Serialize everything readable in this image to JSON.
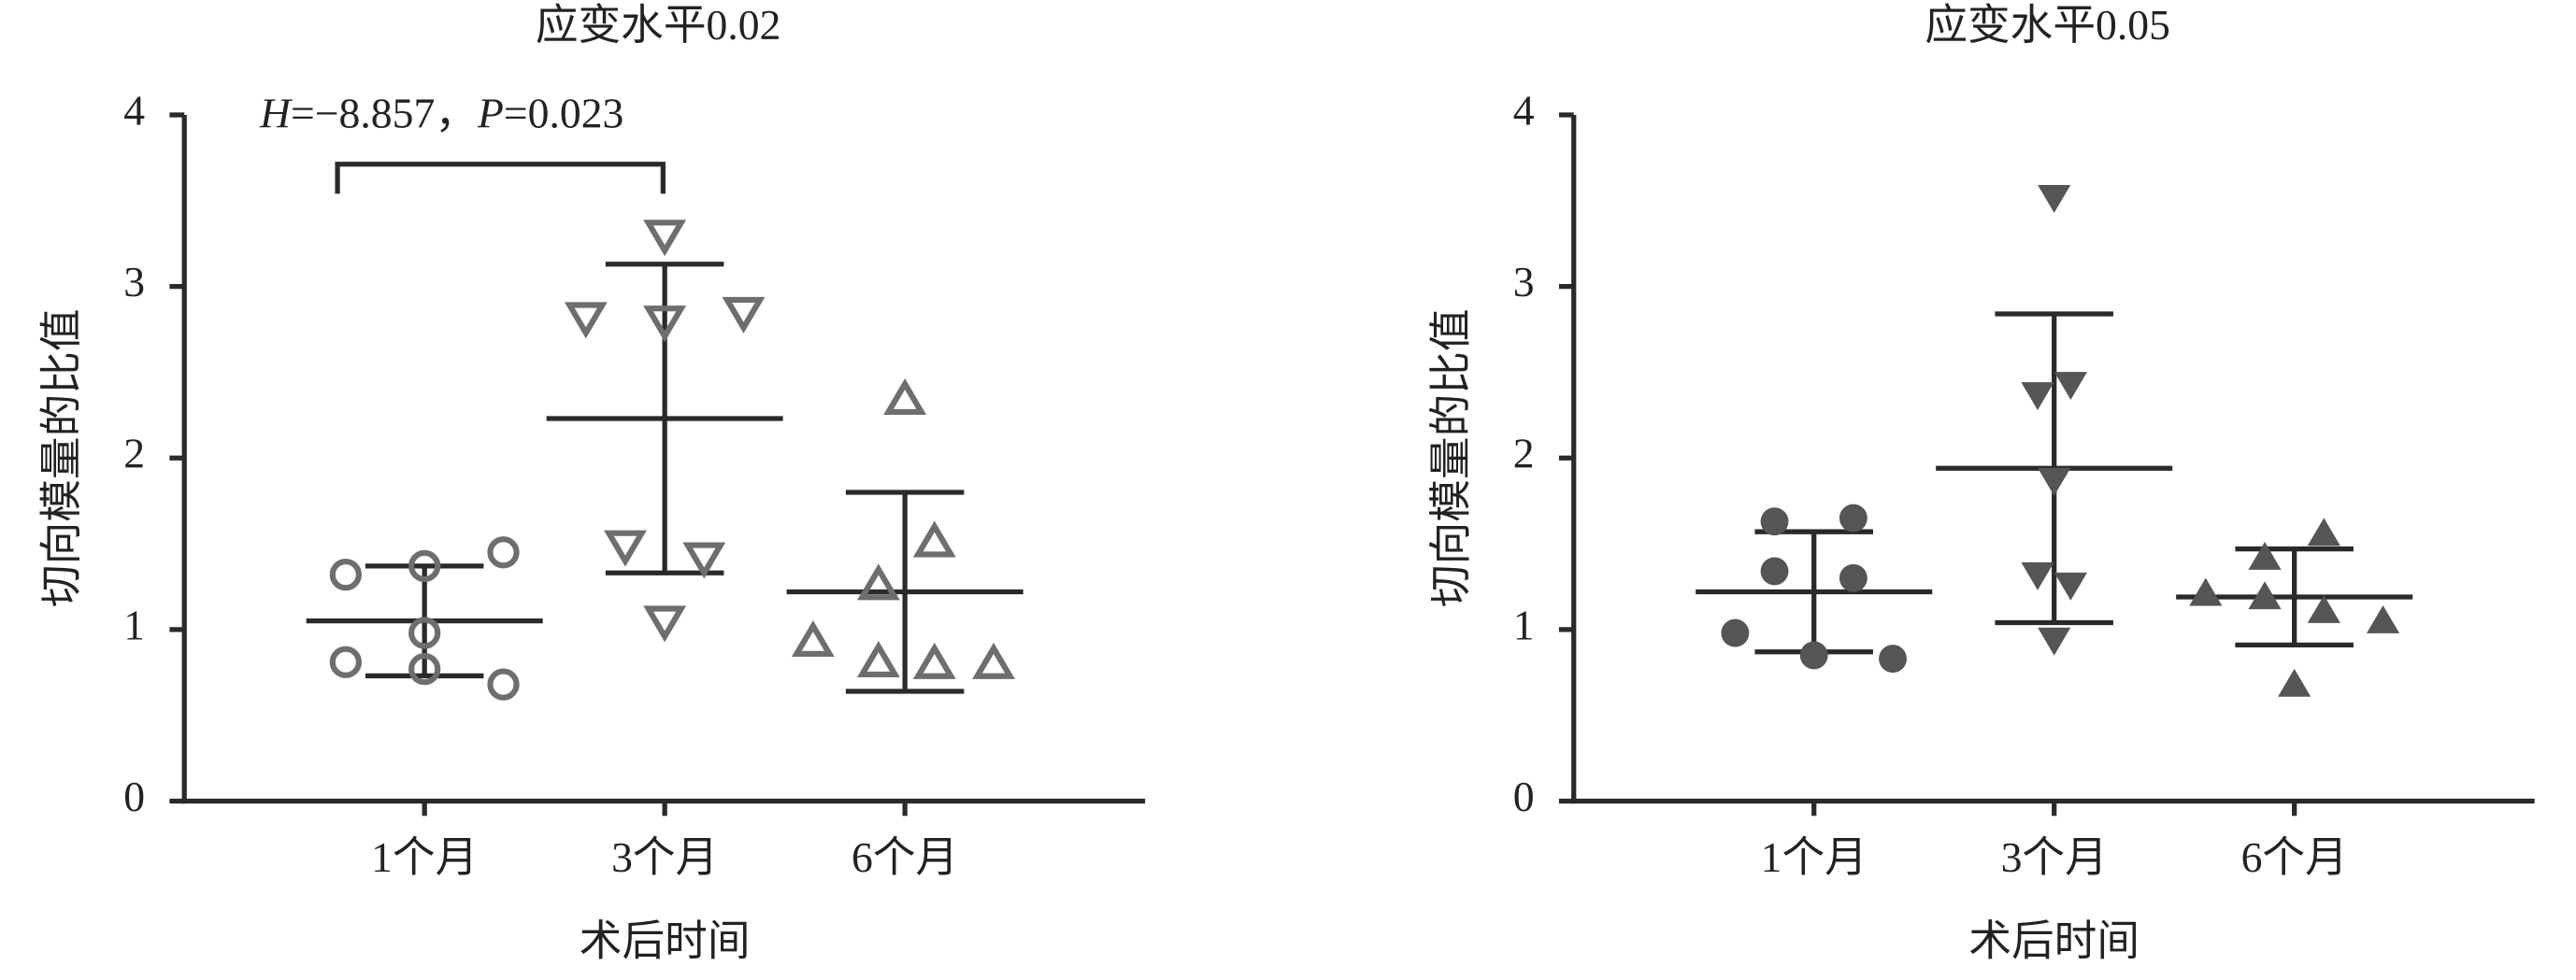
{
  "chart_data": [
    {
      "type": "dot_plot",
      "title": "应变水平0.02",
      "x_label": "术后时间",
      "y_label": "切向模量的比值",
      "categories": [
        "1个月",
        "3个月",
        "6个月"
      ],
      "points": [
        [
          1.32,
          1.37,
          1.45,
          0.98,
          0.81,
          0.77,
          0.68
        ],
        [
          3.3,
          2.82,
          2.8,
          2.85,
          1.49,
          1.42,
          1.05
        ],
        [
          2.34,
          1.26,
          1.51,
          0.93,
          0.81,
          0.8,
          0.8
        ]
      ],
      "means": [
        1.05,
        2.23,
        1.22
      ],
      "sd": [
        0.32,
        0.9,
        0.58
      ],
      "markers": [
        "circle-open",
        "triangle-down-open",
        "triangle-up-open"
      ],
      "color": "#6e6e6e",
      "annotation": [
        "H",
        "=−8.857，",
        "P",
        "=0.023"
      ],
      "ylim": [
        0,
        4
      ],
      "yticks": [
        0,
        1,
        2,
        3,
        4
      ]
    },
    {
      "type": "dot_plot",
      "title": "应变水平0.05",
      "x_label": "术后时间",
      "y_label": "切向模量的比值",
      "categories": [
        "1个月",
        "3个月",
        "6个月"
      ],
      "points": [
        [
          1.63,
          1.65,
          1.34,
          1.3,
          0.98,
          0.85,
          0.83
        ],
        [
          3.52,
          2.37,
          2.43,
          1.87,
          1.32,
          1.26,
          0.94
        ],
        [
          1.56,
          1.21,
          1.42,
          1.19,
          1.11,
          1.05,
          0.68
        ]
      ],
      "means": [
        1.22,
        1.94,
        1.19
      ],
      "sd": [
        0.35,
        0.9,
        0.28
      ],
      "markers": [
        "circle",
        "triangle-down",
        "triangle-up"
      ],
      "color": "#555555",
      "ylim": [
        0,
        4
      ],
      "yticks": [
        0,
        1,
        2,
        3,
        4
      ]
    }
  ]
}
